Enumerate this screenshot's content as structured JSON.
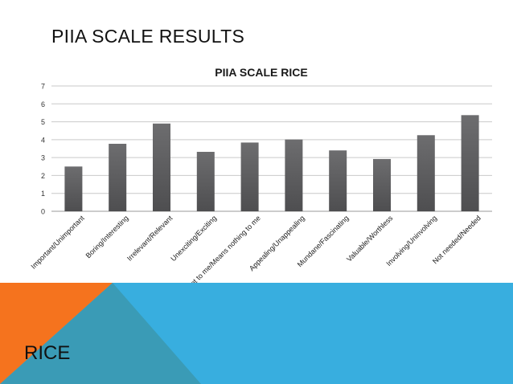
{
  "slide": {
    "title": "PIIA SCALE RESULTS",
    "footer_label": "RICE"
  },
  "colors": {
    "bar": "#6d6d6f",
    "bar_dark": "#4e4e50",
    "grid": "#c9c9c9",
    "banner_blue": "#38aedf",
    "banner_orange": "#f5731e",
    "banner_teal": "#3a9bb6"
  },
  "chart_data": {
    "type": "bar",
    "title": "PIIA SCALE RICE",
    "xlabel": "",
    "ylabel": "",
    "ylim": [
      0,
      7
    ],
    "yticks": [
      0,
      1,
      2,
      3,
      4,
      5,
      6,
      7
    ],
    "grid": true,
    "legend": "none",
    "categories": [
      "Important/Unimportant",
      "Boring/Interesting",
      "Irrelevant/Relevant",
      "Unexciting/Exciting",
      "Means a lot to me/Means nothing to me",
      "Appealing/Unappealing",
      "Mundane/Fascinating",
      "Valuable/Worthless",
      "Involving/Uninvolving",
      "Not needed/Needed"
    ],
    "values": [
      2.5,
      3.77,
      4.9,
      3.32,
      3.84,
      4.01,
      3.4,
      2.92,
      4.25,
      5.37
    ]
  }
}
